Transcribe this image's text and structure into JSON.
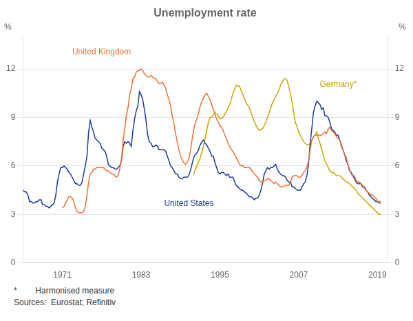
{
  "chart_data": {
    "type": "line",
    "title": "Unemployment rate",
    "ylabel": "%",
    "y2label": "%",
    "xlim": [
      1965.0,
      2020.5
    ],
    "xticks": [
      1971,
      1983,
      1995,
      2007,
      2019
    ],
    "ylim": [
      0,
      14
    ],
    "yticks": [
      0,
      3,
      6,
      9,
      12
    ],
    "y2lim": [
      0,
      14
    ],
    "y2ticks": [
      0,
      3,
      6,
      9,
      12
    ],
    "grid": "y",
    "series": [
      {
        "color": "#f07030",
        "x": [
          1971,
          1971.25,
          1971.5,
          1971.75,
          1972,
          1972.25,
          1972.5,
          1972.75,
          1973,
          1973.25,
          1973.5,
          1973.75,
          1974,
          1974.25,
          1974.5,
          1974.75,
          1975,
          1975.25,
          1975.5,
          1975.75,
          1976,
          1976.25,
          1976.5,
          1976.75,
          1977,
          1977.25,
          1977.5,
          1977.75,
          1978,
          1978.25,
          1978.5,
          1978.75,
          1979,
          1979.25,
          1979.5,
          1979.75,
          1980,
          1980.25,
          1980.5,
          1980.75,
          1981,
          1981.25,
          1981.5,
          1981.75,
          1982,
          1982.25,
          1982.5,
          1982.75,
          1983,
          1983.25,
          1983.5,
          1983.75,
          1984,
          1984.25,
          1984.5,
          1984.75,
          1985,
          1985.25,
          1985.5,
          1985.75,
          1986,
          1986.25,
          1986.5,
          1986.75,
          1987,
          1987.25,
          1987.5,
          1987.75,
          1988,
          1988.25,
          1988.5,
          1988.75,
          1989,
          1989.25,
          1989.5,
          1989.75,
          1990,
          1990.25,
          1990.5,
          1990.75,
          1991,
          1991.25,
          1991.5,
          1991.75,
          1992,
          1992.25,
          1992.5,
          1992.75,
          1993,
          1993.25,
          1993.5,
          1993.75,
          1994,
          1994.25,
          1994.5,
          1994.75,
          1995,
          1995.25,
          1995.5,
          1995.75,
          1996,
          1996.25,
          1996.5,
          1996.75,
          1997,
          1997.25,
          1997.5,
          1997.75,
          1998,
          1998.25,
          1998.5,
          1998.75,
          1999,
          1999.25,
          1999.5,
          1999.75,
          2000,
          2000.25,
          2000.5,
          2000.75,
          2001,
          2001.25,
          2001.5,
          2001.75,
          2002,
          2002.25,
          2002.5,
          2002.75,
          2003,
          2003.25,
          2003.5,
          2003.75,
          2004,
          2004.25,
          2004.5,
          2004.75,
          2005,
          2005.25,
          2005.5,
          2005.75,
          2006,
          2006.25,
          2006.5,
          2006.75,
          2007,
          2007.25,
          2007.5,
          2007.75,
          2008,
          2008.25,
          2008.5,
          2008.75,
          2009,
          2009.25,
          2009.5,
          2009.75,
          2010,
          2010.25,
          2010.5,
          2010.75,
          2011,
          2011.25,
          2011.5,
          2011.75,
          2012,
          2012.25,
          2012.5,
          2012.75,
          2013,
          2013.25,
          2013.5,
          2013.75,
          2014,
          2014.25,
          2014.5,
          2014.75,
          2015,
          2015.25,
          2015.5,
          2015.75,
          2016,
          2016.25,
          2016.5,
          2016.75,
          2017,
          2017.25,
          2017.5,
          2017.75,
          2018,
          2018.25,
          2018.5,
          2018.75,
          2019,
          2019.25,
          2019.5
        ],
        "values": [
          3.4,
          3.5,
          3.7,
          3.9,
          4.1,
          4.1,
          4.0,
          3.8,
          3.4,
          3.2,
          3.1,
          3.1,
          3.1,
          3.2,
          3.5,
          4.2,
          5.0,
          5.5,
          5.6,
          5.8,
          5.8,
          5.9,
          5.9,
          5.9,
          5.9,
          5.9,
          5.8,
          5.7,
          5.7,
          5.6,
          5.5,
          5.5,
          5.4,
          5.3,
          5.4,
          5.8,
          6.4,
          7.5,
          8.3,
          9.1,
          9.6,
          10.4,
          10.8,
          11.4,
          11.5,
          11.8,
          11.9,
          11.9,
          12.0,
          11.9,
          11.7,
          11.6,
          11.5,
          11.5,
          11.6,
          11.5,
          11.4,
          11.4,
          11.2,
          11.1,
          11.1,
          11.2,
          11.0,
          10.8,
          10.4,
          10.1,
          9.7,
          9.1,
          8.6,
          8.0,
          7.5,
          7.0,
          6.6,
          6.4,
          6.2,
          6.1,
          6.2,
          6.4,
          6.9,
          7.6,
          8.2,
          8.7,
          8.9,
          9.3,
          9.7,
          10.0,
          10.2,
          10.4,
          10.5,
          10.3,
          10.1,
          9.8,
          9.5,
          9.2,
          8.9,
          8.7,
          8.5,
          8.4,
          8.2,
          7.9,
          7.7,
          7.4,
          7.2,
          7.0,
          6.9,
          6.7,
          6.5,
          6.3,
          6.1,
          6.0,
          6.0,
          5.9,
          5.9,
          5.9,
          5.9,
          5.8,
          5.6,
          5.5,
          5.4,
          5.3,
          5.1,
          5.0,
          5.0,
          5.1,
          5.1,
          5.2,
          5.2,
          5.1,
          5.0,
          4.9,
          5.0,
          4.9,
          4.8,
          4.7,
          4.7,
          4.7,
          4.8,
          4.8,
          4.8,
          5.0,
          5.3,
          5.4,
          5.4,
          5.4,
          5.3,
          5.3,
          5.4,
          5.6,
          5.7,
          5.9,
          6.3,
          7.0,
          7.6,
          7.8,
          7.9,
          7.9,
          7.9,
          7.9,
          7.9,
          8.0,
          8.1,
          8.0,
          8.3,
          8.4,
          8.2,
          8.1,
          8.0,
          7.8,
          7.7,
          7.6,
          7.2,
          7.0,
          6.7,
          6.5,
          6.1,
          5.8,
          5.5,
          5.4,
          5.4,
          5.1,
          5.0,
          5.0,
          4.9,
          4.8,
          4.6,
          4.5,
          4.4,
          4.3,
          4.2,
          4.2,
          4.1,
          4.0,
          3.8,
          3.8,
          3.8
        ]
      },
      {
        "color": "#1a3a9c",
        "x": [
          1965,
          1965.25,
          1965.5,
          1965.75,
          1966,
          1966.25,
          1966.5,
          1966.75,
          1967,
          1967.25,
          1967.5,
          1967.75,
          1968,
          1968.25,
          1968.5,
          1968.75,
          1969,
          1969.25,
          1969.5,
          1969.75,
          1970,
          1970.25,
          1970.5,
          1970.75,
          1971,
          1971.25,
          1971.5,
          1971.75,
          1972,
          1972.25,
          1972.5,
          1972.75,
          1973,
          1973.25,
          1973.5,
          1973.75,
          1974,
          1974.25,
          1974.5,
          1974.75,
          1975,
          1975.25,
          1975.5,
          1975.75,
          1976,
          1976.25,
          1976.5,
          1976.75,
          1977,
          1977.25,
          1977.5,
          1977.75,
          1978,
          1978.25,
          1978.5,
          1978.75,
          1979,
          1979.25,
          1979.5,
          1979.75,
          1980,
          1980.25,
          1980.5,
          1980.75,
          1981,
          1981.25,
          1981.5,
          1981.75,
          1982,
          1982.25,
          1982.5,
          1982.75,
          1983,
          1983.25,
          1983.5,
          1983.75,
          1984,
          1984.25,
          1984.5,
          1984.75,
          1985,
          1985.25,
          1985.5,
          1985.75,
          1986,
          1986.25,
          1986.5,
          1986.75,
          1987,
          1987.25,
          1987.5,
          1987.75,
          1988,
          1988.25,
          1988.5,
          1988.75,
          1989,
          1989.25,
          1989.5,
          1989.75,
          1990,
          1990.25,
          1990.5,
          1990.75,
          1991,
          1991.25,
          1991.5,
          1991.75,
          1992,
          1992.25,
          1992.5,
          1992.75,
          1993,
          1993.25,
          1993.5,
          1993.75,
          1994,
          1994.25,
          1994.5,
          1994.75,
          1995,
          1995.25,
          1995.5,
          1995.75,
          1996,
          1996.25,
          1996.5,
          1996.75,
          1997,
          1997.25,
          1997.5,
          1997.75,
          1998,
          1998.25,
          1998.5,
          1998.75,
          1999,
          1999.25,
          1999.5,
          1999.75,
          2000,
          2000.25,
          2000.5,
          2000.75,
          2001,
          2001.25,
          2001.5,
          2001.75,
          2002,
          2002.25,
          2002.5,
          2002.75,
          2003,
          2003.25,
          2003.5,
          2003.75,
          2004,
          2004.25,
          2004.5,
          2004.75,
          2005,
          2005.25,
          2005.5,
          2005.75,
          2006,
          2006.25,
          2006.5,
          2006.75,
          2007,
          2007.25,
          2007.5,
          2007.75,
          2008,
          2008.25,
          2008.5,
          2008.75,
          2009,
          2009.25,
          2009.5,
          2009.75,
          2010,
          2010.25,
          2010.5,
          2010.75,
          2011,
          2011.25,
          2011.5,
          2011.75,
          2012,
          2012.25,
          2012.5,
          2012.75,
          2013,
          2013.25,
          2013.5,
          2013.75,
          2014,
          2014.25,
          2014.5,
          2014.75,
          2015,
          2015.25,
          2015.5,
          2015.75,
          2016,
          2016.25,
          2016.5,
          2016.75,
          2017,
          2017.25,
          2017.5,
          2017.75,
          2018,
          2018.25,
          2018.5,
          2018.75,
          2019,
          2019.25,
          2019.5
        ],
        "values": [
          4.5,
          4.4,
          4.4,
          4.2,
          3.8,
          3.8,
          3.7,
          3.7,
          3.8,
          3.8,
          3.9,
          3.9,
          3.6,
          3.6,
          3.5,
          3.5,
          3.4,
          3.5,
          3.6,
          3.7,
          4.2,
          5.0,
          5.5,
          5.9,
          5.9,
          6.0,
          5.9,
          5.8,
          5.6,
          5.5,
          5.3,
          5.1,
          4.9,
          4.9,
          4.8,
          4.8,
          5.0,
          5.5,
          6.0,
          6.6,
          8.1,
          8.8,
          8.4,
          8.1,
          7.7,
          7.6,
          7.5,
          7.4,
          7.1,
          7.0,
          6.9,
          6.6,
          6.1,
          6.0,
          5.9,
          5.9,
          5.8,
          5.8,
          5.9,
          6.0,
          6.3,
          7.2,
          7.5,
          7.4,
          7.5,
          7.4,
          7.2,
          8.2,
          8.9,
          9.4,
          9.7,
          10.6,
          10.4,
          10.1,
          9.5,
          8.8,
          7.9,
          7.5,
          7.4,
          7.2,
          7.2,
          7.3,
          7.2,
          7.0,
          7.0,
          7.0,
          7.0,
          6.9,
          6.6,
          6.3,
          6.0,
          5.9,
          5.7,
          5.5,
          5.5,
          5.3,
          5.2,
          5.2,
          5.3,
          5.3,
          5.3,
          5.4,
          5.7,
          6.1,
          6.5,
          6.7,
          6.8,
          7.0,
          7.3,
          7.5,
          7.6,
          7.4,
          7.3,
          7.1,
          6.9,
          6.6,
          6.6,
          6.2,
          5.9,
          5.6,
          5.5,
          5.6,
          5.6,
          5.5,
          5.4,
          5.5,
          5.3,
          5.3,
          5.3,
          5.0,
          4.8,
          4.7,
          4.6,
          4.5,
          4.5,
          4.4,
          4.3,
          4.2,
          4.1,
          4.1,
          4.0,
          3.9,
          4.0,
          4.0,
          4.2,
          4.5,
          4.9,
          5.5,
          5.7,
          5.9,
          5.8,
          5.9,
          5.9,
          6.0,
          6.1,
          5.8,
          5.6,
          5.5,
          5.4,
          5.4,
          5.3,
          5.1,
          5.0,
          5.0,
          4.7,
          4.7,
          4.6,
          4.5,
          4.5,
          4.5,
          4.7,
          4.9,
          5.0,
          5.4,
          6.1,
          7.4,
          8.3,
          9.3,
          9.7,
          10.0,
          9.9,
          9.8,
          9.5,
          9.6,
          9.1,
          9.1,
          9.0,
          8.7,
          8.3,
          8.2,
          8.1,
          7.9,
          7.9,
          7.6,
          7.3,
          7.0,
          6.7,
          6.3,
          6.1,
          5.7,
          5.6,
          5.4,
          5.2,
          5.0,
          4.9,
          4.9,
          4.9,
          4.7,
          4.7,
          4.5,
          4.4,
          4.2,
          4.1,
          4.0,
          3.9,
          3.8,
          3.8,
          3.7,
          3.7
        ]
      },
      {
        "color": "#c8a800",
        "x": [
          1991,
          1991.5,
          1992,
          1992.5,
          1993,
          1993.25,
          1993.5,
          1993.75,
          1994,
          1994.25,
          1994.5,
          1994.75,
          1995,
          1995.5,
          1996,
          1996.5,
          1997,
          1997.5,
          1998,
          1998.5,
          1999,
          1999.5,
          2000,
          2000.5,
          2001,
          2001.5,
          2002,
          2002.5,
          2003,
          2003.5,
          2004,
          2004.25,
          2004.5,
          2004.75,
          2005,
          2005.25,
          2005.5,
          2005.75,
          2006,
          2006.25,
          2006.5,
          2006.75,
          2007,
          2007.25,
          2007.5,
          2007.75,
          2008,
          2008.25,
          2008.5,
          2008.75,
          2009,
          2009.25,
          2009.5,
          2009.75,
          2010,
          2010.25,
          2010.5,
          2010.75,
          2011,
          2011.25,
          2011.5,
          2011.75,
          2012,
          2012.25,
          2012.5,
          2012.75,
          2013,
          2013.25,
          2013.5,
          2013.75,
          2014,
          2014.25,
          2014.5,
          2014.75,
          2015,
          2015.25,
          2015.5,
          2015.75,
          2016,
          2016.25,
          2016.5,
          2016.75,
          2017,
          2017.25,
          2017.5,
          2017.75,
          2018,
          2018.25,
          2018.5,
          2018.75,
          2019,
          2019.25,
          2019.5
        ],
        "values": [
          5.5,
          6.0,
          6.5,
          7.2,
          8.2,
          8.7,
          9.0,
          9.0,
          9.2,
          9.3,
          9.2,
          9.1,
          8.9,
          9.0,
          9.4,
          9.8,
          10.5,
          11.0,
          10.9,
          10.4,
          9.9,
          9.6,
          9.0,
          8.5,
          8.2,
          8.3,
          8.7,
          9.3,
          9.9,
          10.3,
          10.7,
          11.0,
          11.2,
          11.4,
          11.4,
          11.3,
          10.9,
          10.5,
          9.9,
          9.3,
          8.7,
          8.4,
          8.1,
          7.9,
          7.7,
          7.5,
          7.4,
          7.3,
          7.3,
          7.4,
          7.6,
          7.8,
          7.9,
          8.1,
          7.7,
          7.4,
          7.0,
          6.7,
          6.3,
          6.1,
          5.9,
          5.7,
          5.6,
          5.6,
          5.5,
          5.4,
          5.4,
          5.4,
          5.3,
          5.2,
          5.1,
          5.0,
          5.0,
          4.9,
          4.8,
          4.7,
          4.6,
          4.5,
          4.3,
          4.2,
          4.1,
          4.0,
          3.9,
          3.8,
          3.7,
          3.6,
          3.5,
          3.4,
          3.3,
          3.2,
          3.1,
          3.0,
          3.0
        ]
      }
    ],
    "annotations": [
      {
        "text": "United Kingdom",
        "x": 1972.5,
        "y": 12.8,
        "color": "#f07030"
      },
      {
        "text": "United States",
        "x": 1986.5,
        "y": 3.4,
        "color": "#1a3a9c"
      },
      {
        "text": "Germany*",
        "x": 2010.2,
        "y": 10.8,
        "color": "#c8a800"
      }
    ],
    "footnotes": [
      "*        Harmonised measure",
      "Sources:  Eurostat; Refinitiv"
    ]
  }
}
